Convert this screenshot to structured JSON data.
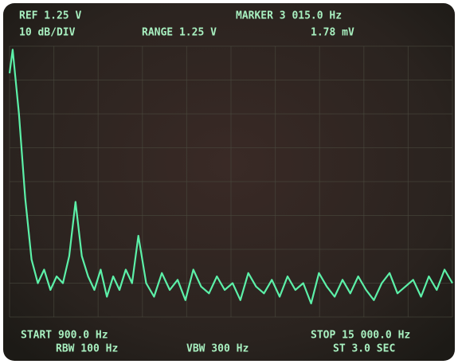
{
  "chart_data": {
    "type": "line",
    "annotations": [
      "REF 1.25 V",
      "10 dB/DIV",
      "RANGE 1.25 V",
      "MARKER 3 015.0 Hz",
      "1.78 mV",
      "START 900.0 Hz",
      "RBW 100 Hz",
      "VBW 300 Hz",
      "STOP 15 000.0 Hz",
      "ST 3.0 SEC"
    ],
    "xlim": [
      900,
      15000
    ],
    "ylim": [
      -80,
      0
    ],
    "x": [
      900,
      1000,
      1200,
      1400,
      1600,
      1800,
      2000,
      2200,
      2400,
      2600,
      2800,
      3000,
      3200,
      3400,
      3600,
      3800,
      4000,
      4200,
      4400,
      4600,
      4800,
      5000,
      5250,
      5500,
      5750,
      6000,
      6250,
      6500,
      6750,
      7000,
      7250,
      7500,
      7750,
      8000,
      8250,
      8500,
      8750,
      9000,
      9250,
      9500,
      9750,
      10000,
      10250,
      10500,
      10750,
      11000,
      11250,
      11500,
      11750,
      12000,
      12250,
      12500,
      12750,
      13000,
      13250,
      13500,
      13750,
      14000,
      14250,
      14500,
      14750,
      15000
    ],
    "values": [
      -8,
      -1,
      -20,
      -45,
      -63,
      -70,
      -66,
      -72,
      -68,
      -70,
      -62,
      -46,
      -62,
      -68,
      -72,
      -66,
      -74,
      -68,
      -72,
      -66,
      -70,
      -56,
      -70,
      -74,
      -67,
      -72,
      -69,
      -75,
      -66,
      -71,
      -73,
      -68,
      -72,
      -70,
      -75,
      -67,
      -71,
      -73,
      -69,
      -74,
      -68,
      -72,
      -70,
      -76,
      -67,
      -71,
      -74,
      -69,
      -73,
      -68,
      -72,
      -75,
      -70,
      -67,
      -73,
      -71,
      -69,
      -74,
      -68,
      -72,
      -66,
      -70
    ],
    "color": "#5cf0a8"
  }
}
